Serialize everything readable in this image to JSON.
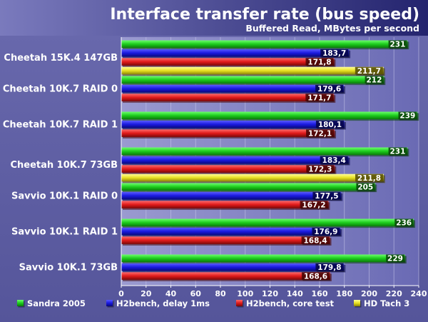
{
  "chart_data": {
    "type": "bar",
    "orientation": "horizontal",
    "title": "Interface transfer rate (bus speed)",
    "subtitle": "Buffered Read, MBytes per second",
    "categories": [
      "Cheetah 15K.4 147GB",
      "Cheetah 10K.7 RAID 0",
      "Cheetah 10K.7 RAID 1",
      "Cheetah 10K.7 73GB",
      "Savvio 10K.1 RAID 0",
      "Savvio 10K.1 RAID 1",
      "Savvio 10K.1 73GB"
    ],
    "series": [
      {
        "name": "Sandra 2005",
        "color": "#22cc22",
        "values": [
          231,
          212,
          239,
          231,
          205,
          236,
          229
        ],
        "labels": [
          "231",
          "212",
          "239",
          "231",
          "205",
          "236",
          "229"
        ]
      },
      {
        "name": "H2bench, delay 1ms",
        "color": "#1a1ae0",
        "values": [
          183.7,
          179.6,
          180.1,
          183.4,
          177.5,
          176.9,
          179.8
        ],
        "labels": [
          "183,7",
          "179,6",
          "180,1",
          "183,4",
          "177,5",
          "176,9",
          "179,8"
        ]
      },
      {
        "name": "H2bench, core test",
        "color": "#e01a1a",
        "values": [
          171.8,
          171.7,
          172.1,
          172.3,
          167.2,
          168.4,
          168.6
        ],
        "labels": [
          "171,8",
          "171,7",
          "172,1",
          "172,3",
          "167,2",
          "168,4",
          "168,6"
        ]
      },
      {
        "name": "HD Tach 3",
        "color": "#e8e020",
        "values": [
          211.7,
          null,
          null,
          211.8,
          null,
          null,
          null
        ],
        "labels": [
          "211,7",
          null,
          null,
          "211,8",
          null,
          null,
          null
        ]
      }
    ],
    "xlim": [
      0,
      240
    ],
    "xticks": [
      0,
      20,
      40,
      60,
      80,
      100,
      120,
      140,
      160,
      180,
      200,
      220,
      240
    ],
    "grid": true,
    "legend_position": "bottom"
  }
}
